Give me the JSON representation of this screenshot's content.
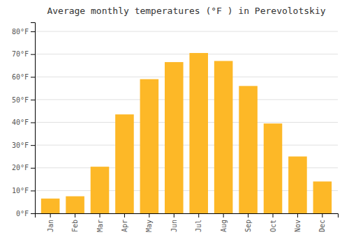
{
  "chart_data": {
    "type": "bar",
    "title": "Average monthly temperatures (°F ) in Perevolotskiy",
    "categories": [
      "Jan",
      "Feb",
      "Mar",
      "Apr",
      "May",
      "Jun",
      "Jul",
      "Aug",
      "Sep",
      "Oct",
      "Nov",
      "Dec"
    ],
    "values": [
      6.5,
      7.5,
      20.5,
      43.5,
      59.0,
      66.5,
      70.5,
      67.0,
      56.0,
      39.5,
      25.0,
      14.0
    ],
    "color": "#FDB827",
    "ylim": [
      0,
      84
    ],
    "yticks": [
      {
        "value": 0,
        "label": "0°F"
      },
      {
        "value": 10,
        "label": "10°F"
      },
      {
        "value": 20,
        "label": "20°F"
      },
      {
        "value": 30,
        "label": "30°F"
      },
      {
        "value": 40,
        "label": "40°F"
      },
      {
        "value": 50,
        "label": "50°F"
      },
      {
        "value": 60,
        "label": "60°F"
      },
      {
        "value": 70,
        "label": "70°F"
      },
      {
        "value": 80,
        "label": "80°F"
      }
    ],
    "grid": true
  }
}
